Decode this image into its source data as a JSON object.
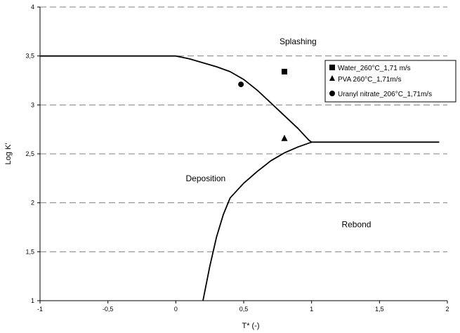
{
  "chart_data": {
    "type": "scatter",
    "xlabel": "T* (-)",
    "ylabel": "Log K'",
    "xlim": [
      -1,
      2
    ],
    "ylim": [
      1,
      4
    ],
    "x_ticks": [
      -1,
      -0.5,
      0,
      0.5,
      1,
      1.5,
      2
    ],
    "x_tick_labels": [
      "-1",
      "-0,5",
      "0",
      "0,5",
      "1",
      "1,5",
      "2"
    ],
    "y_ticks": [
      1,
      1.5,
      2,
      2.5,
      3,
      3.5,
      4
    ],
    "y_tick_labels": [
      "1",
      "1,5",
      "2",
      "2,5",
      "3",
      "3,5",
      "4"
    ],
    "grid": "horizontal dashed",
    "legend_position": "right, upper",
    "series": [
      {
        "name": "Water_260°C_1,71 m/s",
        "marker": "square",
        "points": [
          [
            0.8,
            3.34
          ]
        ]
      },
      {
        "name": "PVA 260°C_1,71m/s",
        "marker": "triangle",
        "points": [
          [
            0.8,
            2.66
          ]
        ]
      },
      {
        "name": "Uranyl nitrate_206°C_1,71m/s",
        "marker": "circle",
        "points": [
          [
            0.48,
            3.21
          ]
        ]
      }
    ],
    "boundary_curves": [
      {
        "points": [
          [
            -1,
            3.5
          ],
          [
            0,
            3.5
          ],
          [
            0.1,
            3.47
          ],
          [
            0.2,
            3.43
          ],
          [
            0.3,
            3.39
          ],
          [
            0.4,
            3.34
          ],
          [
            0.5,
            3.26
          ],
          [
            0.6,
            3.15
          ],
          [
            0.7,
            3.02
          ],
          [
            0.8,
            2.89
          ],
          [
            0.9,
            2.76
          ],
          [
            0.98,
            2.64
          ],
          [
            1.0,
            2.62
          ],
          [
            1.94,
            2.62
          ]
        ]
      },
      {
        "points": [
          [
            0.2,
            1.0
          ],
          [
            0.25,
            1.35
          ],
          [
            0.3,
            1.65
          ],
          [
            0.35,
            1.88
          ],
          [
            0.4,
            2.05
          ],
          [
            0.5,
            2.2
          ],
          [
            0.6,
            2.32
          ],
          [
            0.7,
            2.43
          ],
          [
            0.8,
            2.51
          ],
          [
            0.9,
            2.57
          ],
          [
            1.0,
            2.62
          ]
        ]
      }
    ],
    "annotations": [
      {
        "text": "Splashing",
        "x": 0.9,
        "y": 3.62
      },
      {
        "text": "Deposition",
        "x": 0.22,
        "y": 2.22
      },
      {
        "text": "Rebond",
        "x": 1.33,
        "y": 1.75
      }
    ]
  }
}
